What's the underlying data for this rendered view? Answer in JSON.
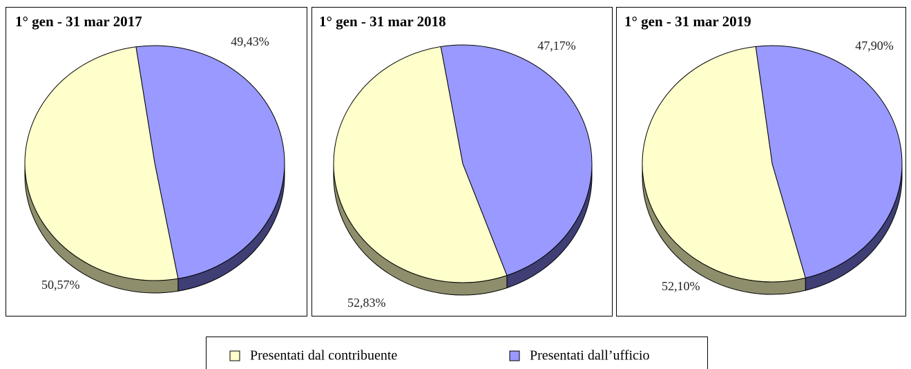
{
  "chart_data": [
    {
      "type": "pie",
      "title": "1° gen - 31 mar 2017",
      "values": [
        50.57,
        49.43
      ],
      "value_labels": [
        "50,57%",
        "49,43%"
      ],
      "start_angle": -98.3
    },
    {
      "type": "pie",
      "title": "1° gen - 31 mar 2018",
      "values": [
        52.83,
        47.17
      ],
      "value_labels": [
        "52,83%",
        "47,17%"
      ],
      "start_angle": -99.8
    },
    {
      "type": "pie",
      "title": "1° gen - 31 mar 2019",
      "values": [
        52.1,
        47.9
      ],
      "value_labels": [
        "52,10%",
        "47,90%"
      ],
      "start_angle": -97.3
    }
  ],
  "legend": {
    "entries": [
      {
        "name": "Presentati dal contribuente",
        "color": "#ffffcc",
        "side_color": "#8e8e6c"
      },
      {
        "name": "Presentati dall’ufficio",
        "color": "#9999ff",
        "side_color": "#3f3f75"
      }
    ]
  }
}
